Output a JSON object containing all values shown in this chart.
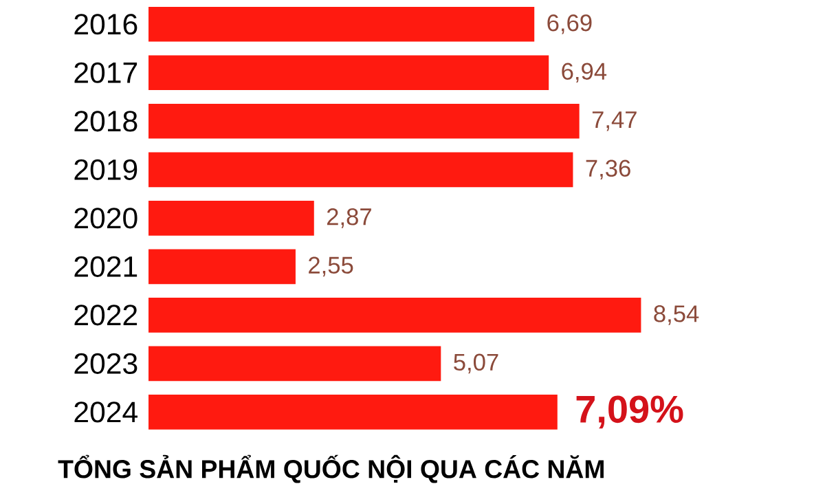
{
  "chart_data": {
    "type": "bar",
    "orientation": "horizontal",
    "title": "TỔNG SẢN PHẨM QUỐC NỘI QUA CÁC NĂM",
    "categories": [
      "2016",
      "2017",
      "2018",
      "2019",
      "2020",
      "2021",
      "2022",
      "2023",
      "2024"
    ],
    "values": [
      6.69,
      6.94,
      7.47,
      7.36,
      2.87,
      2.55,
      8.54,
      5.07,
      7.09
    ],
    "value_labels": [
      "6,69",
      "6,94",
      "7,47",
      "7,36",
      "2,87",
      "2,55",
      "8,54",
      "5,07",
      "7,09%"
    ],
    "color": "#ff1a10"
  }
}
